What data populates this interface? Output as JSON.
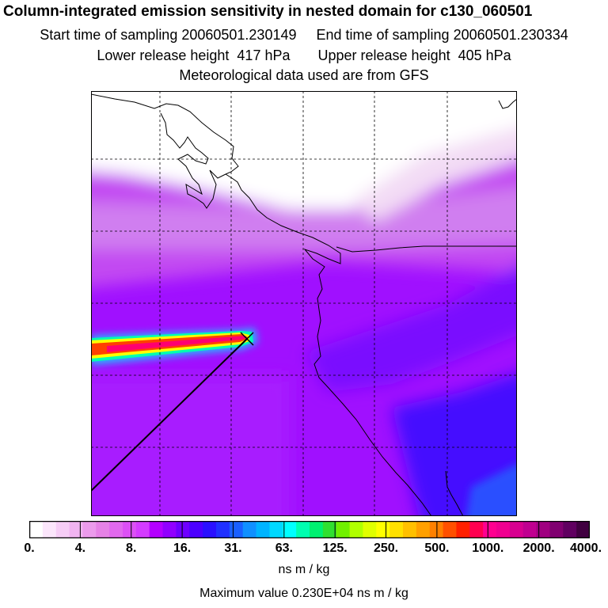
{
  "header": {
    "title": "Column-integrated emission sensitivity in nested domain for c130_060501",
    "line1": "Start time of sampling 20060501.230149     End time of sampling 20060501.230334",
    "line2": "Lower release height  417 hPa       Upper release height  405 hPa",
    "line3": "Meteorological data used are from GFS"
  },
  "colorbar": {
    "tick_labels": [
      "0.",
      "4.",
      "8.",
      "16.",
      "31.",
      "63.",
      "125.",
      "250.",
      "500.",
      "1000.",
      "2000.",
      "4000."
    ],
    "units": "ns m / kg",
    "colors": [
      "#ffffff",
      "#fbe6fb",
      "#f6cdf6",
      "#f1b4f1",
      "#ec9bec",
      "#e682e6",
      "#e169ee",
      "#dc50f5",
      "#d43cff",
      "#b400ff",
      "#9100ff",
      "#6e00ff",
      "#4b00ff",
      "#2a10ff",
      "#2030ff",
      "#1a60ff",
      "#1090ff",
      "#00b4ff",
      "#00d8ff",
      "#00ffff",
      "#00ffb0",
      "#00f070",
      "#30e030",
      "#70f000",
      "#b0ff00",
      "#e0ff00",
      "#ffff00",
      "#ffe000",
      "#ffc000",
      "#ffa000",
      "#ff8000",
      "#ff5000",
      "#ff2000",
      "#ff0050",
      "#ff0090",
      "#f00090",
      "#d80090",
      "#c00090",
      "#a00080",
      "#800070",
      "#600060",
      "#400040"
    ]
  },
  "max_value": "Maximum value  0.230E+04 ns m / kg"
}
